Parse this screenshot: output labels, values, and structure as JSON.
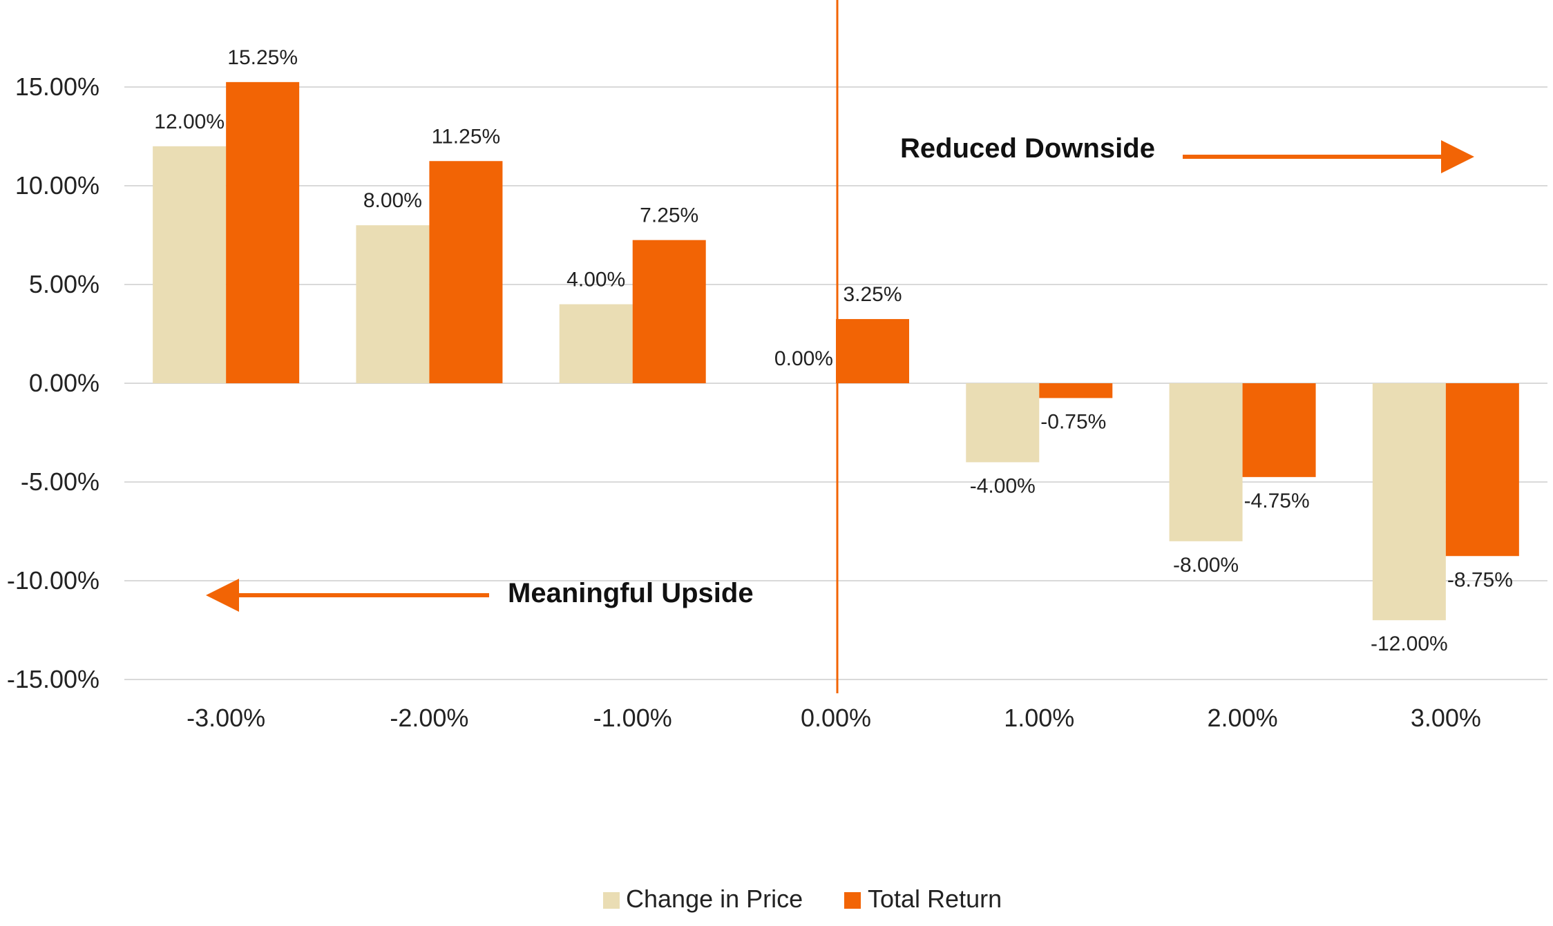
{
  "chart_data": {
    "type": "bar",
    "categories": [
      "-3.00%",
      "-2.00%",
      "-1.00%",
      "0.00%",
      "1.00%",
      "2.00%",
      "3.00%"
    ],
    "series": [
      {
        "name": "Change in Price",
        "values": [
          12.0,
          8.0,
          4.0,
          0.0,
          -4.0,
          -8.0,
          -12.0
        ],
        "labels": [
          "12.00%",
          "8.00%",
          "4.00%",
          "0.00%",
          "-4.00%",
          "-8.00%",
          "-12.00%"
        ],
        "color": "#EADDB4"
      },
      {
        "name": "Total Return",
        "values": [
          15.25,
          11.25,
          7.25,
          3.25,
          -0.75,
          -4.75,
          -8.75
        ],
        "labels": [
          "15.25%",
          "11.25%",
          "7.25%",
          "3.25%",
          "-0.75%",
          "-4.75%",
          "-8.75%"
        ],
        "color": "#F26405"
      }
    ],
    "y_ticks": [
      15,
      10,
      5,
      0,
      -5,
      -10,
      -15
    ],
    "y_tick_labels": [
      "15.00%",
      "10.00%",
      "5.00%",
      "0.00%",
      "-5.00%",
      "-10.00%",
      "-15.00%"
    ],
    "ylim": [
      -15,
      15
    ],
    "grid": true,
    "legend_position": "bottom-center",
    "annotations": {
      "right": "Reduced Downside",
      "left": "Meaningful Upside"
    },
    "accent_color": "#F26405",
    "grid_color": "#D9D9D9"
  }
}
